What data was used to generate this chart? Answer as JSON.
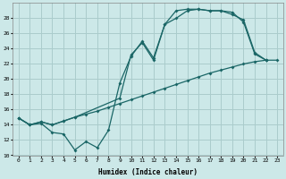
{
  "xlabel": "Humidex (Indice chaleur)",
  "background_color": "#cce8e8",
  "grid_color": "#aacccc",
  "line_color": "#1a6666",
  "xlim": [
    -0.5,
    23.5
  ],
  "ylim": [
    10,
    30
  ],
  "yticks": [
    10,
    12,
    14,
    16,
    18,
    20,
    22,
    24,
    26,
    28
  ],
  "xticks": [
    0,
    1,
    2,
    3,
    4,
    5,
    6,
    7,
    8,
    9,
    10,
    11,
    12,
    13,
    14,
    15,
    16,
    17,
    18,
    19,
    20,
    21,
    22,
    23
  ],
  "line_diagonal_x": [
    0,
    1,
    2,
    3,
    4,
    5,
    6,
    7,
    8,
    9,
    10,
    11,
    12,
    13,
    14,
    15,
    16,
    17,
    18,
    19,
    20,
    21,
    22,
    23
  ],
  "line_diagonal_y": [
    14.9,
    14.0,
    14.4,
    14.0,
    14.5,
    15.0,
    15.4,
    15.8,
    16.3,
    16.8,
    17.3,
    17.8,
    18.3,
    18.8,
    19.3,
    19.8,
    20.3,
    20.8,
    21.2,
    21.6,
    22.0,
    22.3,
    22.5,
    22.5
  ],
  "line_jagged_x": [
    0,
    1,
    2,
    3,
    4,
    5,
    6,
    7,
    8,
    9,
    10,
    11,
    12,
    13,
    14,
    15,
    16,
    17,
    18,
    19,
    20,
    21,
    22
  ],
  "line_jagged_y": [
    14.9,
    14.0,
    14.2,
    13.0,
    12.8,
    10.7,
    11.8,
    11.0,
    13.3,
    19.5,
    23.0,
    25.0,
    22.8,
    27.2,
    28.0,
    29.0,
    29.2,
    29.0,
    29.0,
    28.8,
    27.5,
    23.3,
    22.5
  ],
  "line_upper_x": [
    0,
    1,
    2,
    3,
    4,
    5,
    9,
    10,
    11,
    12,
    13,
    14,
    15,
    16,
    17,
    18,
    19,
    20,
    21,
    22
  ],
  "line_upper_y": [
    14.9,
    14.0,
    14.4,
    14.0,
    14.5,
    15.0,
    17.5,
    23.2,
    24.8,
    22.5,
    27.2,
    29.0,
    29.2,
    29.2,
    29.0,
    29.0,
    28.5,
    27.8,
    23.5,
    22.5
  ]
}
